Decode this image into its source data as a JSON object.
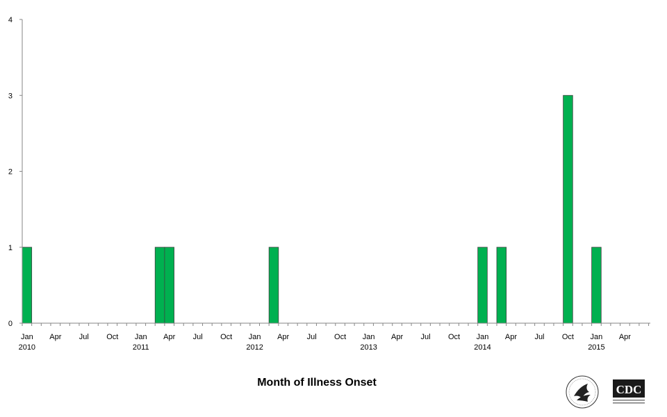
{
  "chart_data": {
    "type": "bar",
    "title": "",
    "xlabel": "Month of Illness Onset",
    "ylabel": "",
    "ylim": [
      0,
      4
    ],
    "yticks": [
      0,
      1,
      2,
      3,
      4
    ],
    "grid": false,
    "bar_color": "#00b050",
    "bar_edge_color": "#404040",
    "x_start": "Jan 2010",
    "x_end": "Jun 2015",
    "x_tick_labels": [
      {
        "month": "Jan",
        "year": "2010"
      },
      {
        "month": "Apr",
        "year": ""
      },
      {
        "month": "Jul",
        "year": ""
      },
      {
        "month": "Oct",
        "year": ""
      },
      {
        "month": "Jan",
        "year": "2011"
      },
      {
        "month": "Apr",
        "year": ""
      },
      {
        "month": "Jul",
        "year": ""
      },
      {
        "month": "Oct",
        "year": ""
      },
      {
        "month": "Jan",
        "year": "2012"
      },
      {
        "month": "Apr",
        "year": ""
      },
      {
        "month": "Jul",
        "year": ""
      },
      {
        "month": "Oct",
        "year": ""
      },
      {
        "month": "Jan",
        "year": "2013"
      },
      {
        "month": "Apr",
        "year": ""
      },
      {
        "month": "Jul",
        "year": ""
      },
      {
        "month": "Oct",
        "year": ""
      },
      {
        "month": "Jan",
        "year": "2014"
      },
      {
        "month": "Apr",
        "year": ""
      },
      {
        "month": "Jul",
        "year": ""
      },
      {
        "month": "Oct",
        "year": ""
      },
      {
        "month": "Jan",
        "year": "2015"
      },
      {
        "month": "Apr",
        "year": ""
      }
    ],
    "series": [
      {
        "x": [
          "2010-01",
          "2011-03",
          "2011-04",
          "2012-03",
          "2014-01",
          "2014-03",
          "2014-10",
          "2015-01"
        ],
        "values": [
          1,
          1,
          1,
          1,
          1,
          1,
          3,
          1
        ]
      }
    ]
  },
  "logos": {
    "hhs": "hhs-seal",
    "cdc": "CDC"
  }
}
